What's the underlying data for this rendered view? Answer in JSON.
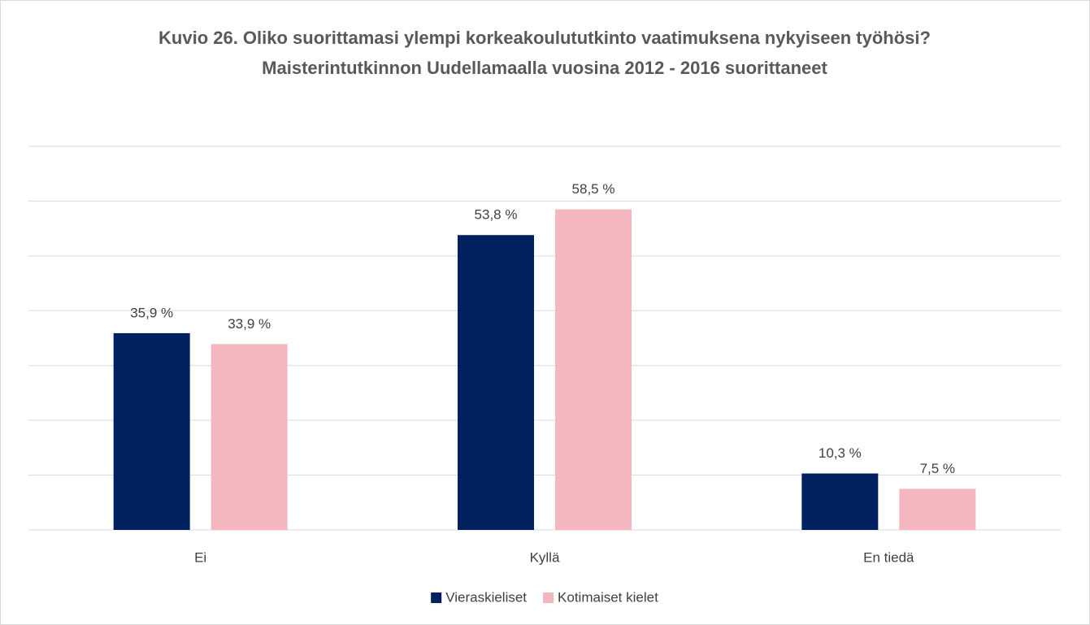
{
  "chart_data": {
    "type": "bar",
    "title": "Kuvio 26. Oliko suorittamasi ylempi korkeakoulututkinto vaatimuksena nykyiseen työhösi? Maisterintutkinnon Uudellamaalla vuosina 2012 - 2016 suorittaneet",
    "categories": [
      "Ei",
      "Kyllä",
      "En tiedä"
    ],
    "series": [
      {
        "name": "Vieraskieliset",
        "color": "#002060",
        "values": [
          35.9,
          53.8,
          10.3
        ],
        "value_labels": [
          "35,9 %",
          "53,8 %",
          "10,3 %"
        ]
      },
      {
        "name": "Kotimaiset kielet",
        "color": "#f4b6bf",
        "values": [
          33.9,
          58.5,
          7.5
        ],
        "value_labels": [
          "33,9 %",
          "58,5 %",
          "7,5 %"
        ]
      }
    ],
    "ylim": [
      0,
      70
    ],
    "yticks": [
      0,
      10,
      20,
      30,
      40,
      50,
      60,
      70
    ],
    "grid": true,
    "legend": "bottom"
  }
}
